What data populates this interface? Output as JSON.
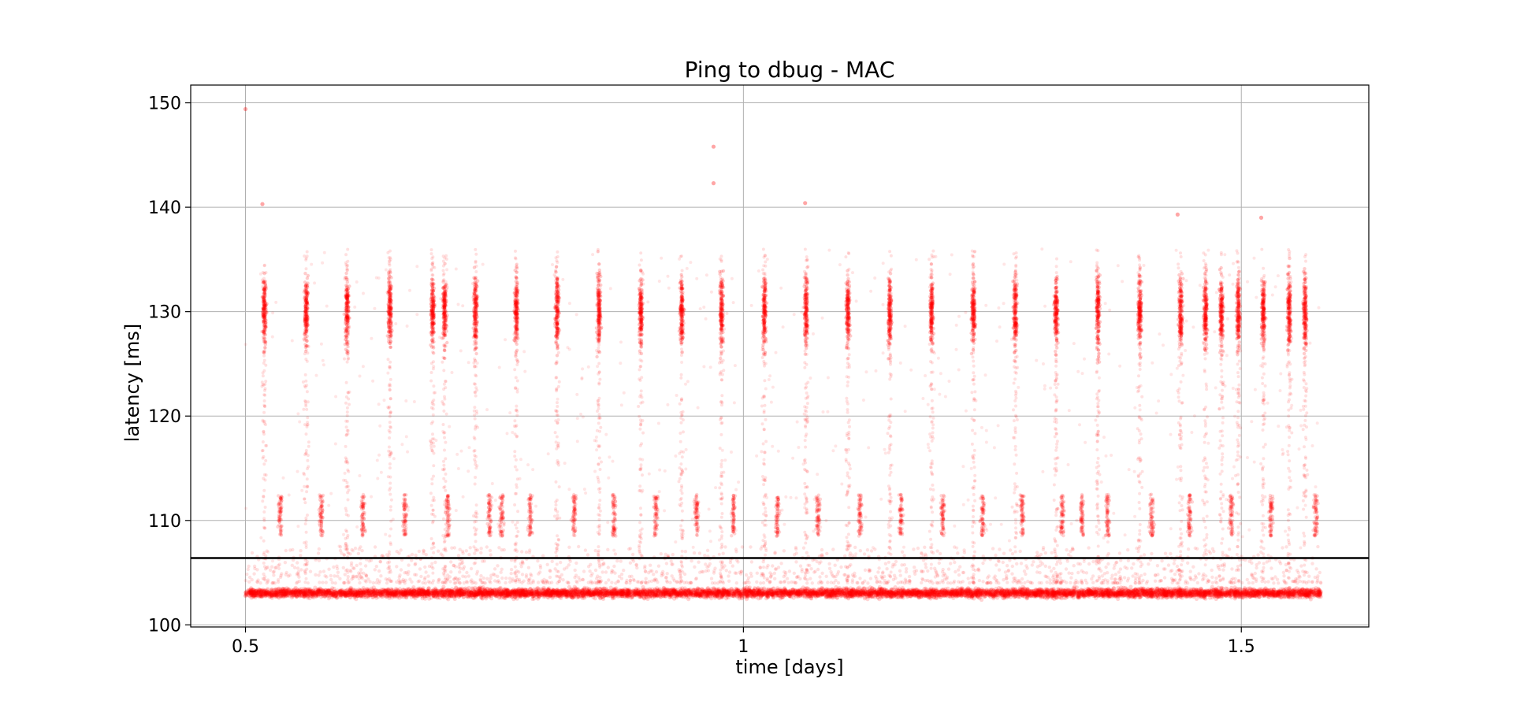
{
  "chart_data": {
    "type": "scatter",
    "title": "Ping to dbug - MAC",
    "xlabel": "time [days]",
    "ylabel": "latency [ms]",
    "xlim": [
      0.445,
      1.628
    ],
    "ylim": [
      99.8,
      151.7
    ],
    "x_ticks": [
      {
        "value": 0.5,
        "label": "0.5"
      },
      {
        "value": 1.0,
        "label": "1"
      },
      {
        "value": 1.5,
        "label": "1.5"
      }
    ],
    "y_ticks": [
      {
        "value": 100,
        "label": "100"
      },
      {
        "value": 110,
        "label": "110"
      },
      {
        "value": 120,
        "label": "120"
      },
      {
        "value": 130,
        "label": "130"
      },
      {
        "value": 140,
        "label": "140"
      },
      {
        "value": 150,
        "label": "150"
      }
    ],
    "grid": true,
    "marker_color": "#ff0000",
    "marker_alpha": 0.12,
    "reference_line": {
      "y": 106.4,
      "color": "#000000"
    },
    "series": [
      {
        "x_range": [
          0.5,
          1.58
        ],
        "baseline_band_ms": [
          102.3,
          103.8
        ],
        "mid_band_ms": [
          108.5,
          112.5
        ],
        "burst_band_ms": [
          122,
          138
        ],
        "outliers": [
          {
            "x": 0.5,
            "y": 149.4
          },
          {
            "x": 0.517,
            "y": 140.3
          },
          {
            "x": 0.97,
            "y": 145.8
          },
          {
            "x": 0.97,
            "y": 142.3
          },
          {
            "x": 1.062,
            "y": 140.4
          },
          {
            "x": 1.436,
            "y": 139.3
          },
          {
            "x": 1.52,
            "y": 139.0
          }
        ],
        "burst_centers": [
          0.519,
          0.561,
          0.602,
          0.645,
          0.688,
          0.7,
          0.731,
          0.772,
          0.813,
          0.855,
          0.897,
          0.938,
          0.978,
          1.021,
          1.063,
          1.105,
          1.147,
          1.189,
          1.231,
          1.273,
          1.314,
          1.356,
          1.398,
          1.439,
          1.464,
          1.48,
          1.497,
          1.522,
          1.548,
          1.564
        ],
        "mid_centers": [
          0.535,
          0.576,
          0.618,
          0.66,
          0.703,
          0.745,
          0.757,
          0.786,
          0.83,
          0.87,
          0.912,
          0.953,
          0.99,
          1.034,
          1.075,
          1.117,
          1.158,
          1.2,
          1.24,
          1.28,
          1.32,
          1.34,
          1.366,
          1.41,
          1.448,
          1.49,
          1.53,
          1.575
        ]
      }
    ]
  }
}
